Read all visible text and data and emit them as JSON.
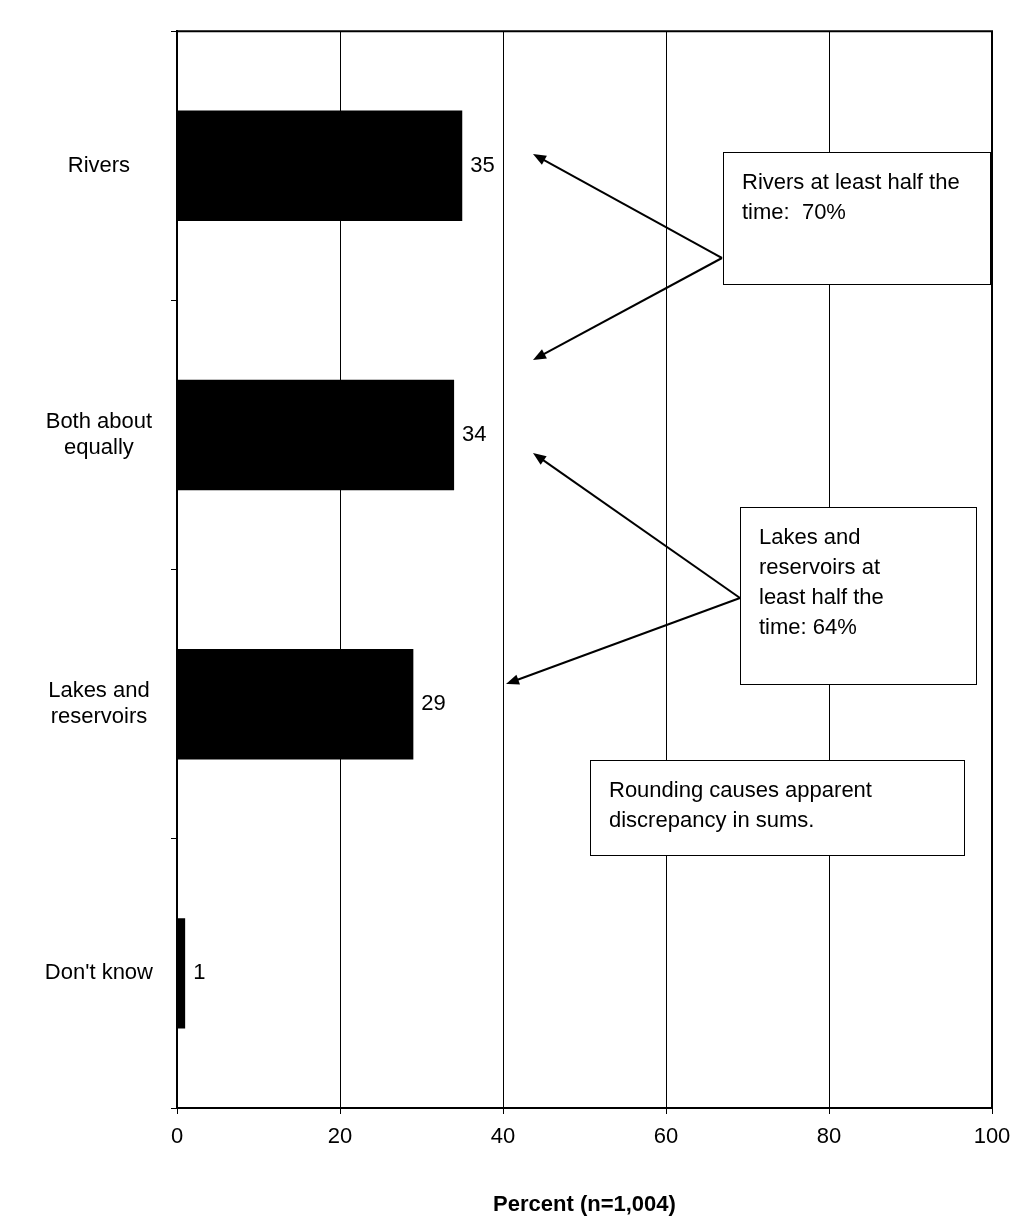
{
  "chart_data": {
    "type": "bar",
    "orientation": "horizontal",
    "categories": [
      "Rivers",
      "Both about equally",
      "Lakes and reservoirs",
      "Don't know"
    ],
    "values": [
      35,
      34,
      29,
      1
    ],
    "color": "#000000",
    "xlim": [
      0,
      100
    ],
    "xticks": [
      0,
      20,
      40,
      60,
      80,
      100
    ],
    "xlabel": "Percent (n=1,004)",
    "grid": "x",
    "data_labels": true,
    "annotations": [
      "Rivers at least half the time:  70%",
      "Lakes and reservoirs at least half the time: 64%",
      "Rounding causes apparent discrepancy in sums."
    ]
  }
}
